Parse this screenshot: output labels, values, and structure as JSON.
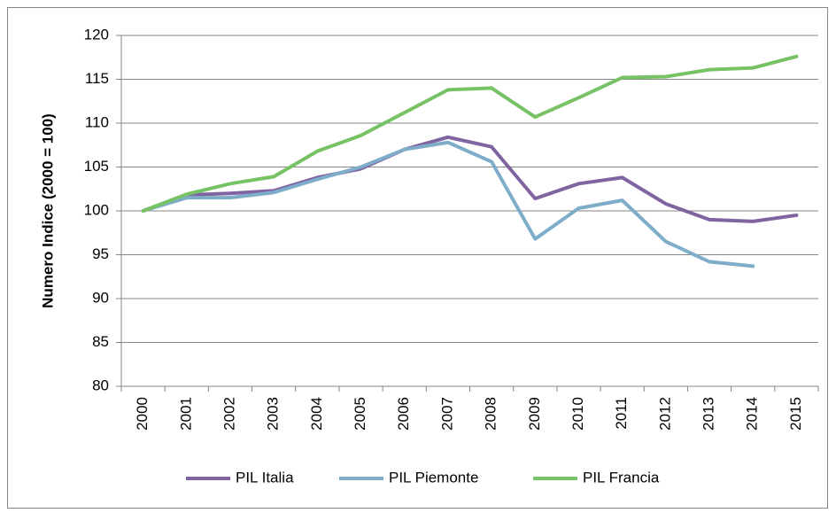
{
  "chart_data": {
    "type": "line",
    "y_label": "Numero Indice (2000 = 100)",
    "categories": [
      "2000",
      "2001",
      "2002",
      "2003",
      "2004",
      "2005",
      "2006",
      "2007",
      "2008",
      "2009",
      "2010",
      "2011",
      "2012",
      "2013",
      "2014",
      "2015"
    ],
    "series": [
      {
        "name": "PIL Italia",
        "color": "#8064a2",
        "values": [
          100,
          101.8,
          102,
          102.3,
          103.8,
          104.8,
          107,
          108.4,
          107.3,
          101.4,
          103.1,
          103.8,
          100.8,
          99,
          98.8,
          99.5
        ]
      },
      {
        "name": "PIL Piemonte",
        "color": "#7eadca",
        "values": [
          100,
          101.5,
          101.5,
          102.1,
          103.6,
          105,
          107,
          107.8,
          105.6,
          96.8,
          100.3,
          101.2,
          96.5,
          94.2,
          93.7,
          null
        ]
      },
      {
        "name": "PIL Francia",
        "color": "#77c265",
        "values": [
          100,
          101.9,
          103.1,
          103.9,
          106.8,
          108.6,
          111.2,
          113.8,
          114,
          110.7,
          112.9,
          115.2,
          115.3,
          116.1,
          116.3,
          117.6
        ]
      }
    ],
    "ylim": [
      80,
      120
    ],
    "yticks": [
      80,
      85,
      90,
      95,
      100,
      105,
      110,
      115,
      120
    ],
    "grid": true,
    "legend": "bottom"
  }
}
